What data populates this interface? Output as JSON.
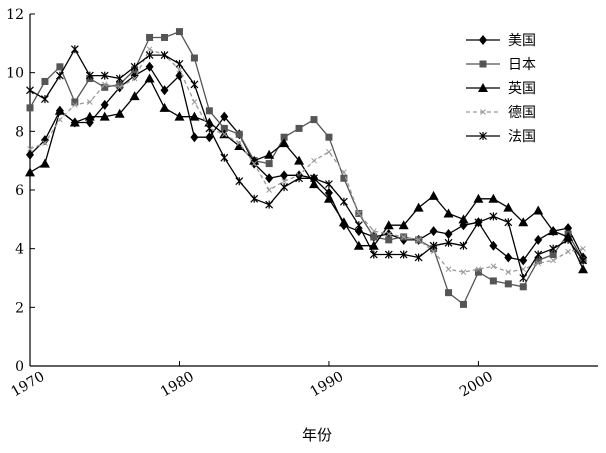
{
  "chart_data": {
    "type": "line",
    "title": "",
    "xlabel": "年份",
    "ylabel": "",
    "xlim": [
      1970,
      2008
    ],
    "ylim": [
      0,
      12
    ],
    "x_ticks": [
      1970,
      1980,
      1990,
      2000
    ],
    "y_ticks": [
      0,
      2,
      4,
      6,
      8,
      10,
      12
    ],
    "grid": false,
    "legend_position": "top-right",
    "x": [
      1970,
      1971,
      1972,
      1973,
      1974,
      1975,
      1976,
      1977,
      1978,
      1979,
      1980,
      1981,
      1982,
      1983,
      1984,
      1985,
      1986,
      1987,
      1988,
      1989,
      1990,
      1991,
      1992,
      1993,
      1994,
      1995,
      1996,
      1997,
      1998,
      1999,
      2000,
      2001,
      2002,
      2003,
      2004,
      2005,
      2006,
      2007
    ],
    "series": [
      {
        "name": "美国",
        "marker": "diamond",
        "color": "#000000",
        "dash": "",
        "values": [
          7.2,
          7.7,
          8.7,
          8.3,
          8.3,
          8.9,
          9.5,
          9.9,
          10.2,
          9.4,
          9.9,
          7.8,
          7.8,
          8.5,
          7.9,
          6.9,
          6.4,
          6.5,
          6.5,
          6.4,
          5.9,
          4.8,
          4.6,
          4.4,
          4.5,
          4.3,
          4.3,
          4.6,
          4.5,
          4.8,
          4.9,
          4.1,
          3.7,
          3.6,
          4.3,
          4.6,
          4.7,
          3.7
        ]
      },
      {
        "name": "日本",
        "marker": "square",
        "color": "#555555",
        "dash": "",
        "values": [
          8.8,
          9.7,
          10.2,
          9.0,
          9.8,
          9.5,
          9.6,
          10.1,
          11.2,
          11.2,
          11.4,
          10.5,
          8.7,
          8.1,
          7.9,
          7.0,
          6.9,
          7.8,
          8.1,
          8.4,
          7.8,
          6.4,
          5.2,
          4.4,
          4.3,
          4.4,
          4.3,
          4.0,
          2.5,
          2.1,
          3.2,
          2.9,
          2.8,
          2.7,
          3.6,
          3.8,
          4.5,
          3.6
        ]
      },
      {
        "name": "英国",
        "marker": "triangle",
        "color": "#000000",
        "dash": "",
        "values": [
          6.6,
          6.9,
          8.7,
          8.3,
          8.5,
          8.5,
          8.6,
          9.2,
          9.8,
          8.8,
          8.5,
          8.5,
          8.3,
          7.9,
          7.5,
          7.0,
          7.2,
          7.6,
          7.0,
          6.2,
          5.7,
          4.9,
          4.1,
          4.1,
          4.8,
          4.8,
          5.4,
          5.8,
          5.2,
          5.0,
          5.7,
          5.7,
          5.4,
          4.9,
          5.3,
          4.6,
          4.4,
          3.3
        ]
      },
      {
        "name": "德国",
        "marker": "cross-small",
        "color": "#999999",
        "dash": "4,3",
        "values": [
          7.4,
          7.6,
          8.4,
          8.9,
          9.0,
          9.6,
          9.5,
          9.8,
          10.8,
          10.6,
          10.1,
          9.0,
          8.1,
          7.9,
          7.6,
          6.9,
          6.0,
          6.3,
          6.5,
          7.0,
          7.3,
          6.6,
          5.2,
          4.6,
          4.5,
          4.4,
          4.3,
          3.9,
          3.3,
          3.2,
          3.3,
          3.4,
          3.2,
          3.3,
          3.5,
          3.6,
          3.9,
          4.0
        ]
      },
      {
        "name": "法国",
        "marker": "asterisk",
        "color": "#000000",
        "dash": "",
        "values": [
          9.4,
          9.1,
          9.9,
          10.8,
          9.9,
          9.9,
          9.8,
          10.2,
          10.6,
          10.6,
          10.3,
          9.6,
          8.1,
          7.1,
          6.3,
          5.7,
          5.5,
          6.1,
          6.4,
          6.4,
          6.2,
          5.6,
          4.8,
          3.8,
          3.8,
          3.8,
          3.7,
          4.1,
          4.2,
          4.1,
          4.9,
          5.1,
          4.9,
          3.0,
          3.8,
          4.0,
          4.3,
          3.6
        ]
      }
    ]
  }
}
